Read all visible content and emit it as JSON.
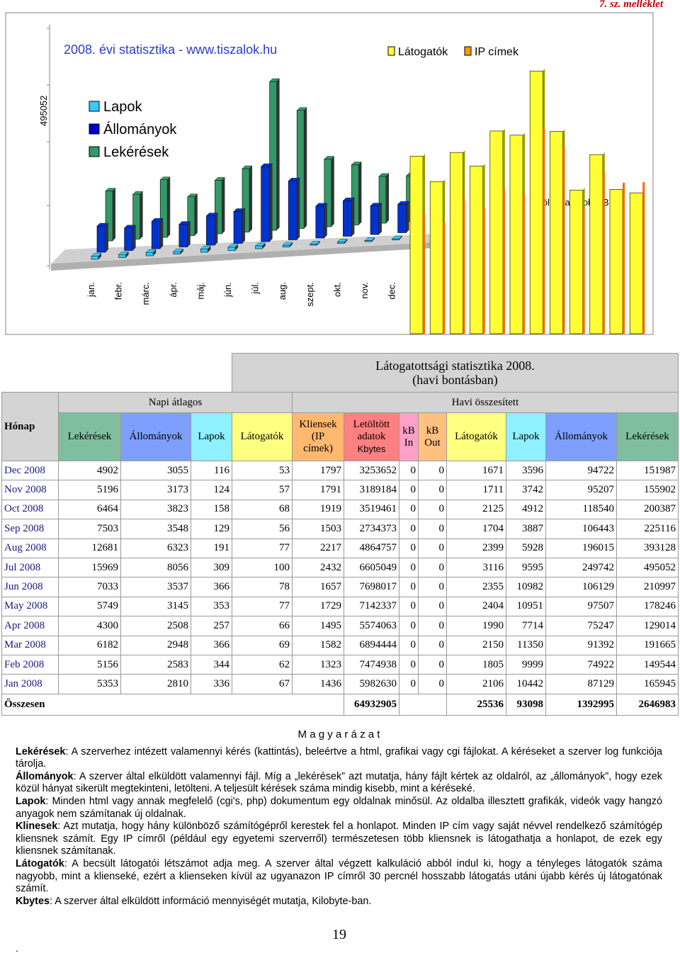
{
  "header": {
    "annex": "7. sz. melléklet"
  },
  "chart": {
    "title": "2008. évi statisztika - www.tiszalok.hu",
    "legend_right": [
      "Látogatók",
      "IP címek"
    ],
    "legend_left": [
      "Lapok",
      "Állományok",
      "Lekérések"
    ],
    "months": [
      "jan.",
      "febr.",
      "márc.",
      "ápr.",
      "máj.",
      "jún.",
      "júl.",
      "aug.",
      "szept.",
      "okt.",
      "nov.",
      "dec."
    ],
    "ytick": 495052,
    "right_label": "letöltött adatok (kB F)"
  },
  "table": {
    "title": "Látogatottsági statisztika 2008.",
    "subtitle": "(havi bontásban)",
    "month_header": "Hónap",
    "daily_header": "Napi átlagos",
    "monthly_header": "Havi összesített",
    "columns": [
      {
        "lines": [
          "Lekérések"
        ]
      },
      {
        "lines": [
          "Állományok"
        ]
      },
      {
        "lines": [
          "Lapok"
        ]
      },
      {
        "lines": [
          "Látogatók"
        ]
      },
      {
        "lines": [
          "Kliensek",
          "(IP",
          "címek)"
        ]
      },
      {
        "lines": [
          "Letöltött",
          "adatok",
          "Kbytes"
        ]
      },
      {
        "lines": [
          "kB",
          "In"
        ]
      },
      {
        "lines": [
          "kB",
          "Out"
        ]
      },
      {
        "lines": [
          "Látogatók"
        ]
      },
      {
        "lines": [
          "Lapok"
        ]
      },
      {
        "lines": [
          "Állományok"
        ]
      },
      {
        "lines": [
          "Lekérések"
        ]
      }
    ],
    "rows": [
      {
        "month": "Dec 2008",
        "values": [
          4902,
          3055,
          116,
          53,
          1797,
          3253652,
          0,
          0,
          1671,
          3596,
          94722,
          151987
        ]
      },
      {
        "month": "Nov 2008",
        "values": [
          5196,
          3173,
          124,
          57,
          1791,
          3189184,
          0,
          0,
          1711,
          3742,
          95207,
          155902
        ]
      },
      {
        "month": "Oct 2008",
        "values": [
          6464,
          3823,
          158,
          68,
          1919,
          3519461,
          0,
          0,
          2125,
          4912,
          118540,
          200387
        ]
      },
      {
        "month": "Sep 2008",
        "values": [
          7503,
          3548,
          129,
          56,
          1503,
          2734373,
          0,
          0,
          1704,
          3887,
          106443,
          225116
        ]
      },
      {
        "month": "Aug 2008",
        "values": [
          12681,
          6323,
          191,
          77,
          2217,
          4864757,
          0,
          0,
          2399,
          5928,
          196015,
          393128
        ]
      },
      {
        "month": "Jul 2008",
        "values": [
          15969,
          8056,
          309,
          100,
          2432,
          6605049,
          0,
          0,
          3116,
          9595,
          249742,
          495052
        ]
      },
      {
        "month": "Jun 2008",
        "values": [
          7033,
          3537,
          366,
          78,
          1657,
          7698017,
          0,
          0,
          2355,
          10982,
          106129,
          210997
        ]
      },
      {
        "month": "May 2008",
        "values": [
          5749,
          3145,
          353,
          77,
          1729,
          7142337,
          0,
          0,
          2404,
          10951,
          97507,
          178246
        ]
      },
      {
        "month": "Apr 2008",
        "values": [
          4300,
          2508,
          257,
          66,
          1495,
          5574063,
          0,
          0,
          1990,
          7714,
          75247,
          129014
        ]
      },
      {
        "month": "Mar 2008",
        "values": [
          6182,
          2948,
          366,
          69,
          1582,
          6894444,
          0,
          0,
          2150,
          11350,
          91392,
          191665
        ]
      },
      {
        "month": "Feb 2008",
        "values": [
          5156,
          2583,
          344,
          62,
          1323,
          7474938,
          0,
          0,
          1805,
          9999,
          74922,
          149544
        ]
      },
      {
        "month": "Jan 2008",
        "values": [
          5353,
          2810,
          336,
          67,
          1436,
          5982630,
          0,
          0,
          2106,
          10442,
          87129,
          165945
        ]
      }
    ],
    "total": {
      "label": "Összesen",
      "kbytes": 64932905,
      "values": [
        25536,
        93098,
        1392995,
        2646983
      ]
    }
  },
  "explanation": {
    "title": "M a g y a r á z a t",
    "items": [
      {
        "term": "Lekérések",
        "text": ": A szerverhez intézett valamennyi kérés (kattintás), beleértve a html, grafikai vagy cgi fájlokat. A kéréseket a szerver log funkciója tárolja."
      },
      {
        "term": "Állományok",
        "text": ": A szerver által elküldött valamennyi fájl. Míg a „lekérések” azt mutatja, hány fájlt kértek az oldalról, az „állományok”, hogy ezek közül hányat sikerült megtekinteni, letölteni. A teljesült kérések száma mindig kisebb, mint a kéréseké."
      },
      {
        "term": "Lapok",
        "text": ": Minden html vagy annak megfelelő (cgi's, php) dokumentum egy oldalnak minősül. Az oldalba illesztett grafikák, videók vagy hangzó anyagok nem számítanak új oldalnak."
      },
      {
        "term": "Klinesek",
        "text": ": Azt mutatja, hogy hány különböző számítógépről kerestek fel a honlapot. Minden IP cím vagy saját névvel rendelkező számítógép kliensnek számít. Egy IP címről (például egy egyetemi szerverről) természetesen több kliensnek is látogathatja a honlapot, de ezek egy kliensnek számítanak."
      },
      {
        "term": "Látogatók",
        "text": ": A becsült látogatói létszámot adja meg. A szerver által végzett kalkuláció abból indul ki, hogy a tényleges látogatók száma nagyobb, mint a klienseké, ezért a klienseken kívül az ugyanazon IP címről 30 percnél hosszabb látogatás utáni újabb kérés új látogatónak számít."
      },
      {
        "term": "Kbytes",
        "text": ": A szerver által elküldött információ mennyiségét mutatja, Kilobyte-ban."
      }
    ]
  },
  "page_number": "19",
  "footer_mark": "."
}
